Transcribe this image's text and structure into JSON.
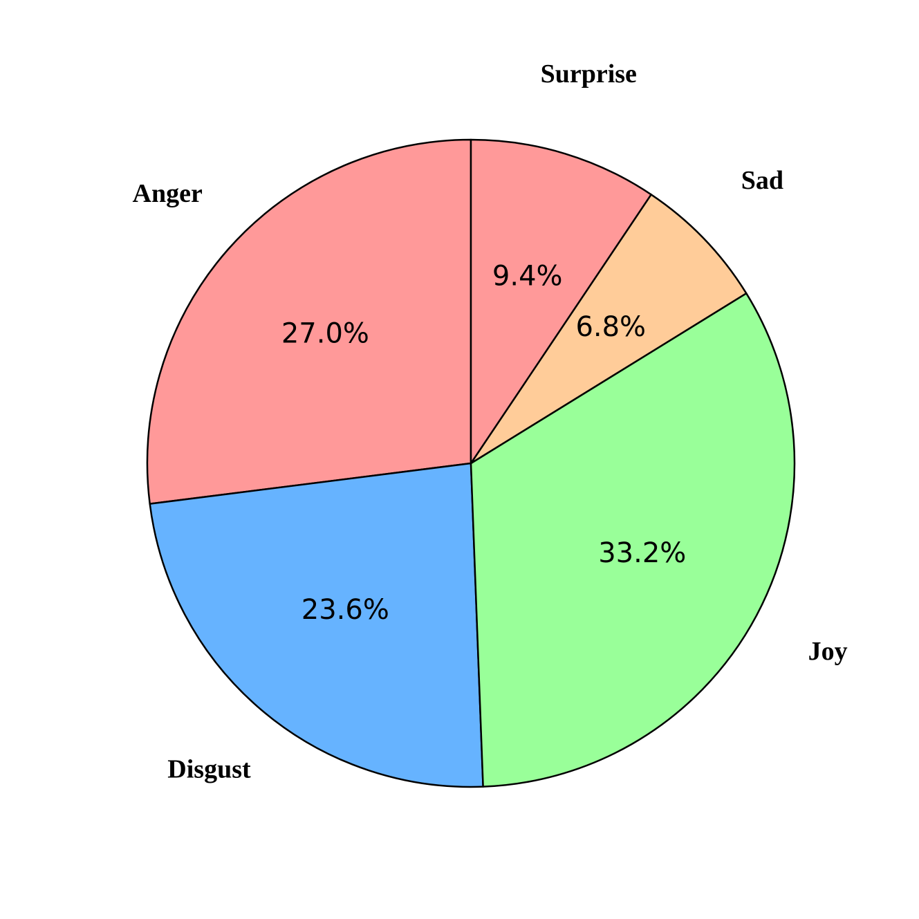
{
  "chart_data": {
    "type": "pie",
    "categories": [
      "Anger",
      "Disgust",
      "Joy",
      "Sad",
      "Surprise"
    ],
    "values": [
      27.0,
      23.6,
      33.2,
      6.8,
      9.4
    ],
    "colors": [
      "#ff9999",
      "#66b3ff",
      "#99ff99",
      "#ffcc99",
      "#ff9999"
    ]
  }
}
